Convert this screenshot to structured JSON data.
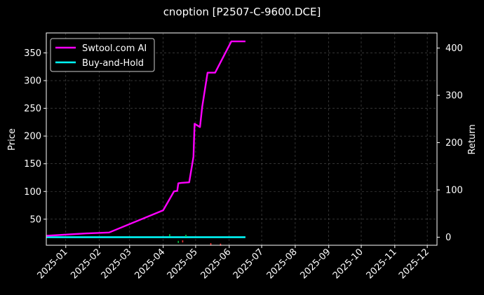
{
  "chart_data": {
    "type": "line",
    "title": "cnoption [P2507-C-9600.DCE]",
    "ylabel": "Price",
    "y2label": "Return",
    "grid": true,
    "legend_position": "top-left",
    "xlim": [
      "2024-12-14",
      "2025-12-10"
    ],
    "ylim": [
      3,
      386
    ],
    "y2lim": [
      -17,
      432
    ],
    "x_ticks": [
      "2025-01",
      "2025-02",
      "2025-03",
      "2025-04",
      "2025-05",
      "2025-06",
      "2025-07",
      "2025-08",
      "2025-09",
      "2025-10",
      "2025-11",
      "2025-12"
    ],
    "y_ticks": [
      "50",
      "100",
      "150",
      "200",
      "250",
      "300",
      "350"
    ],
    "y2_ticks": [
      "0",
      "100",
      "200",
      "300",
      "400"
    ],
    "series": [
      {
        "name": "Swtool.com AI",
        "axis": "right",
        "color": "#ff00ff",
        "points": [
          [
            "2024-12-14",
            3
          ],
          [
            "2025-01-20",
            8
          ],
          [
            "2025-02-10",
            10
          ],
          [
            "2025-04-01",
            57
          ],
          [
            "2025-04-11",
            97
          ],
          [
            "2025-04-14",
            98
          ],
          [
            "2025-04-15",
            114
          ],
          [
            "2025-04-18",
            115
          ],
          [
            "2025-04-25",
            116
          ],
          [
            "2025-04-29",
            170
          ],
          [
            "2025-04-30",
            240
          ],
          [
            "2025-05-05",
            233
          ],
          [
            "2025-05-07",
            275
          ],
          [
            "2025-05-12",
            348
          ],
          [
            "2025-05-19",
            348
          ],
          [
            "2025-06-03",
            414
          ],
          [
            "2025-06-16",
            414
          ]
        ]
      },
      {
        "name": "Buy-and-Hold",
        "axis": "right",
        "color": "#00ffff",
        "points": [
          [
            "2024-12-14",
            0
          ],
          [
            "2025-06-16",
            0
          ]
        ]
      },
      {
        "name": "",
        "axis": "left",
        "type": "scatter",
        "color": "#00cc44",
        "points": [
          [
            "2025-04-07",
            21
          ],
          [
            "2025-04-15",
            9
          ],
          [
            "2025-04-22",
            20
          ]
        ]
      },
      {
        "name": "",
        "axis": "left",
        "type": "scatter",
        "color": "#ff3333",
        "points": [
          [
            "2025-04-19",
            10
          ],
          [
            "2025-05-15",
            5
          ],
          [
            "2025-05-24",
            4
          ]
        ]
      }
    ]
  }
}
